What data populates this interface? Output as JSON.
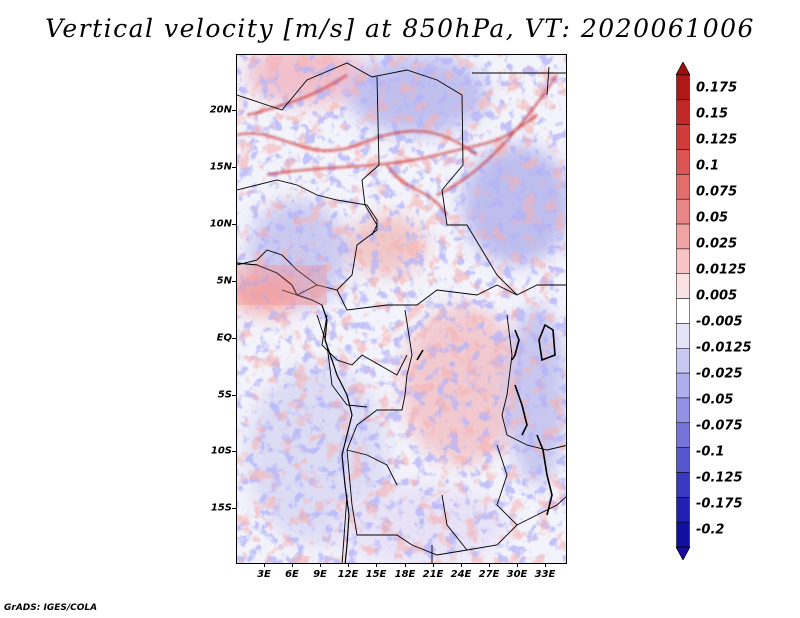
{
  "title": "Vertical velocity [m/s] at 850hPa, VT: 2020061006",
  "credit": "GrADS: IGES/COLA",
  "map": {
    "region": "Central Africa",
    "lon_range": [
      0,
      35
    ],
    "lat_range": [
      -20,
      24
    ],
    "lat_labels": [
      {
        "text": "20N",
        "lat": 20
      },
      {
        "text": "15N",
        "lat": 15
      },
      {
        "text": "10N",
        "lat": 10
      },
      {
        "text": "5N",
        "lat": 5
      },
      {
        "text": "EQ",
        "lat": 0
      },
      {
        "text": "5S",
        "lat": -5
      },
      {
        "text": "10S",
        "lat": -10
      },
      {
        "text": "15S",
        "lat": -15
      }
    ],
    "lon_labels": [
      {
        "text": "3E",
        "lon": 3
      },
      {
        "text": "6E",
        "lon": 6
      },
      {
        "text": "9E",
        "lon": 9
      },
      {
        "text": "12E",
        "lon": 12
      },
      {
        "text": "15E",
        "lon": 15
      },
      {
        "text": "18E",
        "lon": 18
      },
      {
        "text": "21E",
        "lon": 21
      },
      {
        "text": "24E",
        "lon": 24
      },
      {
        "text": "27E",
        "lon": 27
      },
      {
        "text": "30E",
        "lon": 30
      },
      {
        "text": "33E",
        "lon": 33
      }
    ]
  },
  "colorbar": {
    "labels": [
      "0.175",
      "0.15",
      "0.125",
      "0.1",
      "0.075",
      "0.05",
      "0.025",
      "0.0125",
      "0.005",
      "-0.005",
      "-0.0125",
      "-0.025",
      "-0.05",
      "-0.075",
      "-0.1",
      "-0.125",
      "-0.175",
      "-0.2"
    ],
    "colors": [
      "#b01818",
      "#c32828",
      "#d03c3c",
      "#dc5454",
      "#e36c6c",
      "#ea8686",
      "#f0a4a4",
      "#f6c4c4",
      "#fbe2e2",
      "#ffffff",
      "#e4e4f8",
      "#c8c8f2",
      "#aeaeec",
      "#9292e4",
      "#7474da",
      "#5656ce",
      "#3838c0",
      "#2020b0",
      "#1010a0"
    ],
    "top_color": "#9a1010",
    "bottom_color": "#1a0a9c"
  }
}
